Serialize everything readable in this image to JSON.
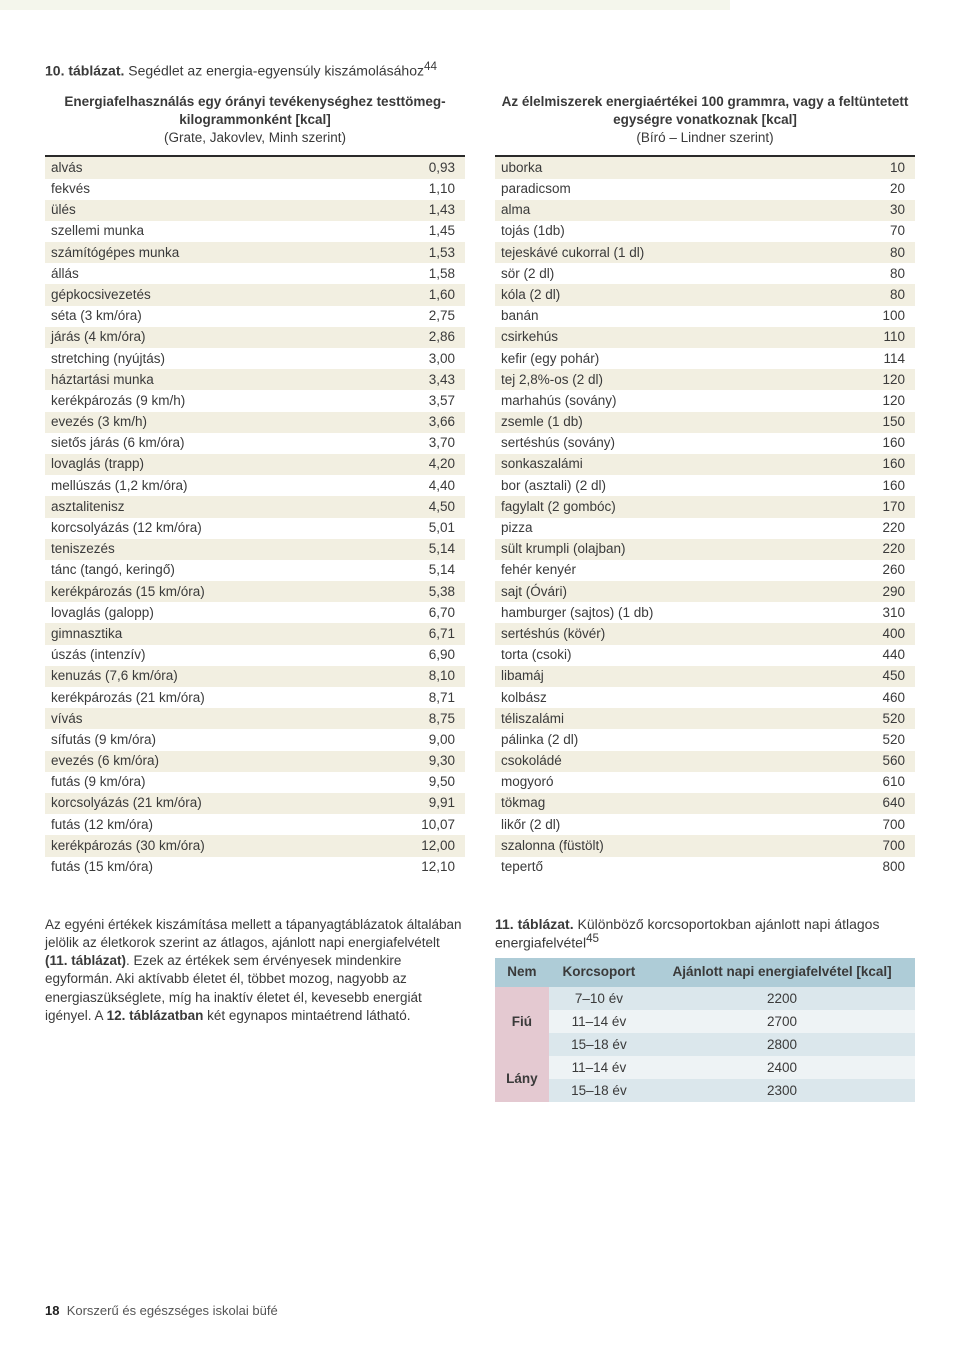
{
  "table10": {
    "title_bold": "10. táblázat.",
    "title_rest": " Segédlet az energia-egyensúly kiszámolásához",
    "title_sup": "44",
    "left": {
      "head_bold": "Energiafelhasználás egy órányi tevékenységhez testtömeg-kilogrammonként [kcal]",
      "head_sub": "(Grate, Jakovlev, Minh szerint)",
      "rows": [
        {
          "l": "alvás",
          "v": "0,93"
        },
        {
          "l": "fekvés",
          "v": "1,10"
        },
        {
          "l": "ülés",
          "v": "1,43"
        },
        {
          "l": "szellemi munka",
          "v": "1,45"
        },
        {
          "l": "számítógépes munka",
          "v": "1,53"
        },
        {
          "l": "állás",
          "v": "1,58"
        },
        {
          "l": "gépkocsivezetés",
          "v": "1,60"
        },
        {
          "l": "séta (3 km/óra)",
          "v": "2,75"
        },
        {
          "l": "járás (4 km/óra)",
          "v": "2,86"
        },
        {
          "l": "stretching (nyújtás)",
          "v": "3,00"
        },
        {
          "l": "háztartási munka",
          "v": "3,43"
        },
        {
          "l": "kerékpározás (9 km/h)",
          "v": "3,57"
        },
        {
          "l": "evezés (3 km/h)",
          "v": "3,66"
        },
        {
          "l": "sietős járás (6 km/óra)",
          "v": "3,70"
        },
        {
          "l": "lovaglás (trapp)",
          "v": "4,20"
        },
        {
          "l": "mellúszás (1,2 km/óra)",
          "v": "4,40"
        },
        {
          "l": "asztalitenisz",
          "v": "4,50"
        },
        {
          "l": "korcsolyázás (12 km/óra)",
          "v": "5,01"
        },
        {
          "l": "teniszezés",
          "v": "5,14"
        },
        {
          "l": "tánc (tangó, keringő)",
          "v": "5,14"
        },
        {
          "l": "kerékpározás (15 km/óra)",
          "v": "5,38"
        },
        {
          "l": "lovaglás (galopp)",
          "v": "6,70"
        },
        {
          "l": "gimnasztika",
          "v": "6,71"
        },
        {
          "l": "úszás (intenzív)",
          "v": "6,90"
        },
        {
          "l": "kenuzás (7,6 km/óra)",
          "v": "8,10"
        },
        {
          "l": "kerékpározás (21 km/óra)",
          "v": "8,71"
        },
        {
          "l": "vívás",
          "v": "8,75"
        },
        {
          "l": "sífutás (9 km/óra)",
          "v": "9,00"
        },
        {
          "l": "evezés (6 km/óra)",
          "v": "9,30"
        },
        {
          "l": "futás (9 km/óra)",
          "v": "9,50"
        },
        {
          "l": "korcsolyázás (21 km/óra)",
          "v": "9,91"
        },
        {
          "l": "futás (12 km/óra)",
          "v": "10,07"
        },
        {
          "l": "kerékpározás (30 km/óra)",
          "v": "12,00"
        },
        {
          "l": "futás (15 km/óra)",
          "v": "12,10"
        }
      ]
    },
    "right": {
      "head_bold": "Az élelmiszerek energiaértékei 100 grammra, vagy a feltüntetett egységre vonatkoznak [kcal]",
      "head_sub": "(Bíró – Lindner szerint)",
      "rows": [
        {
          "l": "uborka",
          "v": "10"
        },
        {
          "l": "paradicsom",
          "v": "20"
        },
        {
          "l": "alma",
          "v": "30"
        },
        {
          "l": "tojás (1db)",
          "v": "70"
        },
        {
          "l": "tejeskávé cukorral (1 dl)",
          "v": "80"
        },
        {
          "l": "sör (2 dl)",
          "v": "80"
        },
        {
          "l": "kóla (2 dl)",
          "v": "80"
        },
        {
          "l": "banán",
          "v": "100"
        },
        {
          "l": "csirkehús",
          "v": "110"
        },
        {
          "l": "kefir (egy pohár)",
          "v": "114"
        },
        {
          "l": "tej 2,8%-os (2 dl)",
          "v": "120"
        },
        {
          "l": "marhahús (sovány)",
          "v": "120"
        },
        {
          "l": "zsemle (1 db)",
          "v": "150"
        },
        {
          "l": "sertéshús (sovány)",
          "v": "160"
        },
        {
          "l": "sonkaszalámi",
          "v": "160"
        },
        {
          "l": "bor (asztali) (2 dl)",
          "v": "160"
        },
        {
          "l": "fagylalt (2 gombóc)",
          "v": "170"
        },
        {
          "l": "pizza",
          "v": "220"
        },
        {
          "l": "sült krumpli (olajban)",
          "v": "220"
        },
        {
          "l": "fehér kenyér",
          "v": "260"
        },
        {
          "l": "sajt (Óvári)",
          "v": "290"
        },
        {
          "l": "hamburger (sajtos) (1 db)",
          "v": "310"
        },
        {
          "l": "sertéshús (kövér)",
          "v": "400"
        },
        {
          "l": "torta (csoki)",
          "v": "440"
        },
        {
          "l": "libamáj",
          "v": "450"
        },
        {
          "l": "kolbász",
          "v": "460"
        },
        {
          "l": "téliszalámi",
          "v": "520"
        },
        {
          "l": "pálinka (2 dl)",
          "v": "520"
        },
        {
          "l": "csokoládé",
          "v": "560"
        },
        {
          "l": "mogyoró",
          "v": "610"
        },
        {
          "l": "tökmag",
          "v": "640"
        },
        {
          "l": "likőr (2 dl)",
          "v": "700"
        },
        {
          "l": "szalonna (füstölt)",
          "v": "700"
        },
        {
          "l": "tepertő",
          "v": "800"
        }
      ]
    }
  },
  "paragraph": {
    "p1": "Az egyéni értékek kiszámítása mellett a tápanyagtáblázatok általában jelölik az életkorok szerint az átlagos, ajánlott napi energiafelvételt ",
    "p2_bold": "(11. táblázat)",
    "p3": ". Ezek az értékek sem érvényesek mindenkire egyformán. Aki aktívabb életet él, többet mozog, nagyobb az energiaszükséglete, míg ha inaktív életet él, kevesebb energiát igényel. A ",
    "p4_bold": "12. táblázatban",
    "p5": " két egynapos mintaétrend látható."
  },
  "table11": {
    "title_bold": "11. táblázat.",
    "title_rest": " Különböző korcsoportokban ajánlott napi átlagos energiafelvétel",
    "title_sup": "45",
    "head": {
      "c1": "Nem",
      "c2": "Korcsoport",
      "c3": "Ajánlott napi energiafelvétel [kcal]"
    },
    "rows": [
      {
        "gender": "Fiú",
        "span": 3,
        "age": "7–10 év",
        "kcal": "2200"
      },
      {
        "age": "11–14 év",
        "kcal": "2700"
      },
      {
        "age": "15–18 év",
        "kcal": "2800"
      },
      {
        "gender": "Lány",
        "span": 2,
        "age": "11–14 év",
        "kcal": "2400"
      },
      {
        "age": "15–18 év",
        "kcal": "2300"
      }
    ]
  },
  "footer": {
    "page": "18",
    "title": "Korszerű és egészséges iskolai büfé"
  }
}
